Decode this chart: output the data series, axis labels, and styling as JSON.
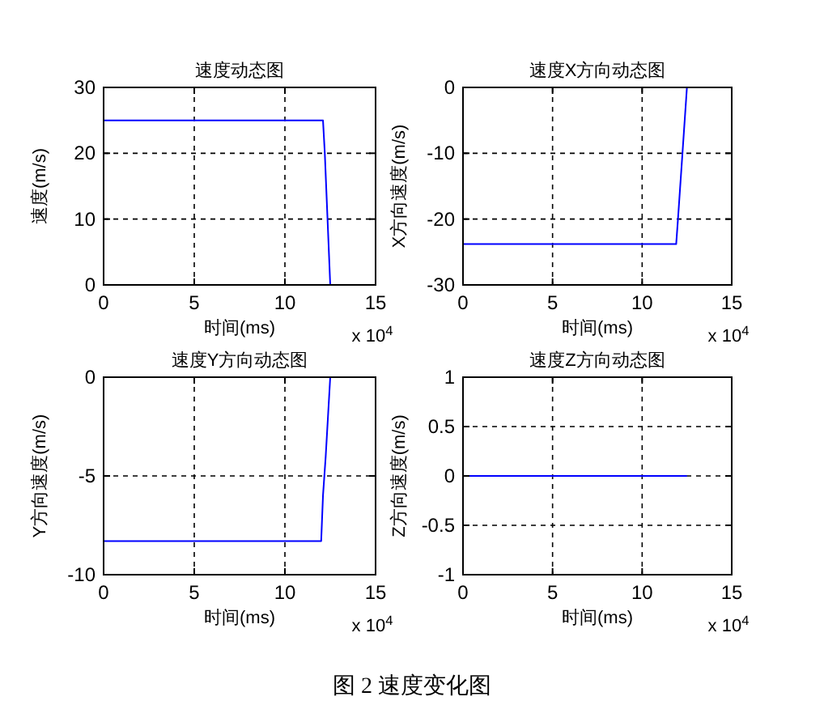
{
  "chart_data": [
    {
      "type": "line",
      "title": "速度动态图",
      "xlabel": "时间(ms)",
      "ylabel": "速度(m/s)",
      "annotations": [
        "x 10$^{4}$"
      ],
      "x": [
        0,
        12.1,
        12.2,
        12.35,
        12.5
      ],
      "series": [
        {
          "color": "#0000ff",
          "values": [
            25,
            25,
            20,
            10,
            0
          ]
        }
      ],
      "xlim": [
        0,
        15
      ],
      "ylim": [
        0,
        30
      ],
      "xticks": [
        0,
        5,
        10,
        15
      ],
      "yticks": [
        0,
        10,
        20,
        30
      ],
      "grid": true
    },
    {
      "type": "line",
      "title": "速度X方向动态图",
      "xlabel": "时间(ms)",
      "ylabel": "X方向速度(m/s)",
      "annotations": [
        "x 10$^{4}$"
      ],
      "x": [
        0,
        11.9,
        12.0,
        12.25,
        12.5
      ],
      "series": [
        {
          "color": "#0000ff",
          "values": [
            -23.8,
            -23.8,
            -20,
            -10,
            0
          ]
        }
      ],
      "xlim": [
        0,
        15
      ],
      "ylim": [
        -30,
        0
      ],
      "xticks": [
        0,
        5,
        10,
        15
      ],
      "yticks": [
        -30,
        -20,
        -10,
        0
      ],
      "grid": true
    },
    {
      "type": "line",
      "title": "速度Y方向动态图",
      "xlabel": "时间(ms)",
      "ylabel": "Y方向速度(m/s)",
      "annotations": [
        "x 10$^{4}$"
      ],
      "x": [
        0,
        12.0,
        12.1,
        12.25,
        12.5
      ],
      "series": [
        {
          "color": "#0000ff",
          "values": [
            -8.3,
            -8.3,
            -6,
            -4,
            0
          ]
        }
      ],
      "xlim": [
        0,
        15
      ],
      "ylim": [
        -10,
        0
      ],
      "xticks": [
        0,
        5,
        10,
        15
      ],
      "yticks": [
        -10,
        -5,
        0
      ],
      "grid": true
    },
    {
      "type": "line",
      "title": "速度Z方向动态图",
      "xlabel": "时间(ms)",
      "ylabel": "Z方向速度(m/s)",
      "annotations": [
        "x 10$^{4}$",
        "图 2  速度变化图"
      ],
      "x": [
        0,
        12.5
      ],
      "series": [
        {
          "color": "#0000ff",
          "values": [
            0,
            0
          ]
        }
      ],
      "xlim": [
        0,
        15
      ],
      "ylim": [
        -1,
        1
      ],
      "xticks": [
        0,
        5,
        10,
        15
      ],
      "yticks": [
        -1,
        -0.5,
        0,
        0.5,
        1
      ],
      "grid": true
    }
  ]
}
